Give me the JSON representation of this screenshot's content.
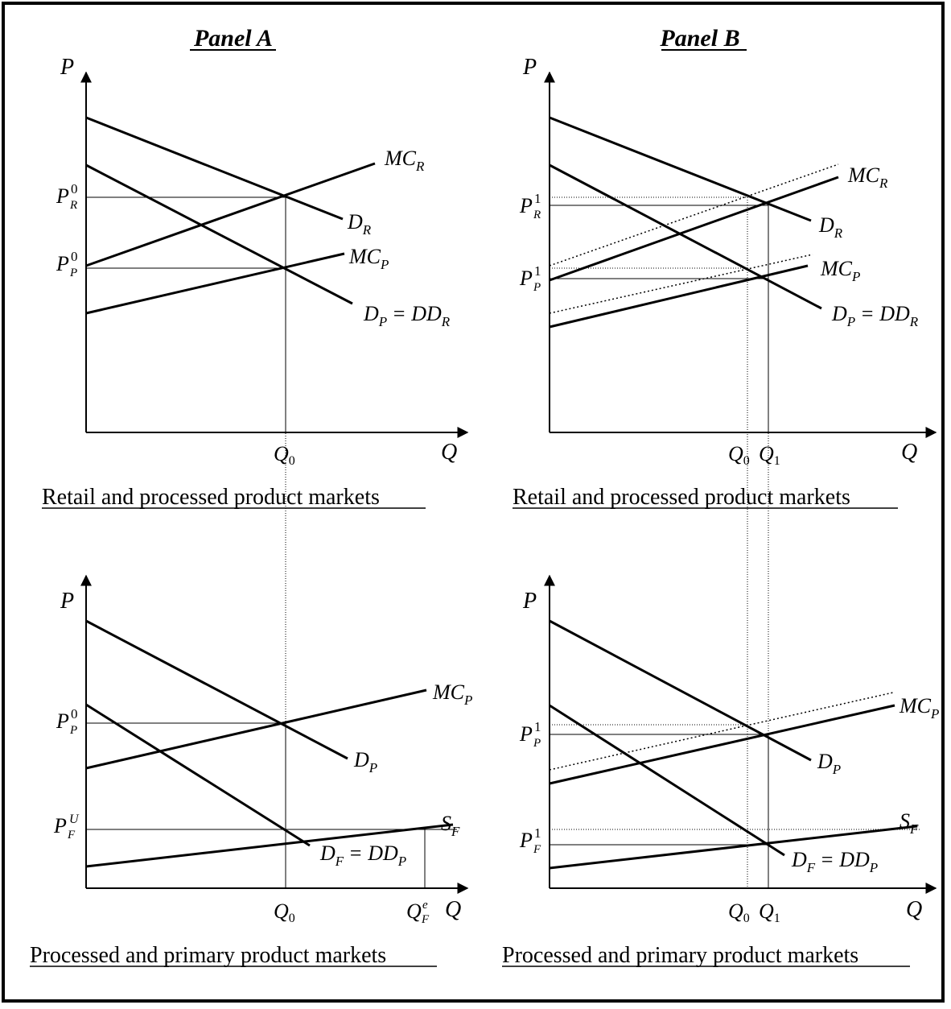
{
  "panel_titles": {
    "a": "Panel A",
    "b": "Panel B"
  },
  "captions": {
    "a_top": "Retail and processed product markets",
    "b_top": "Retail and processed product markets",
    "a_bottom": "Processed and primary product markets",
    "b_bottom": "Processed and primary product markets"
  },
  "axis_labels": {
    "price": "P",
    "quantity": "Q"
  },
  "curve_labels": {
    "mc_r": {
      "main": "MC",
      "sub": "R"
    },
    "d_r": {
      "main": "D",
      "sub": "R"
    },
    "mc_p": {
      "main": "MC",
      "sub": "P"
    },
    "d_p": {
      "main": "D",
      "sub": "P"
    },
    "d_p_eq_dd_r": {
      "main": "D",
      "sub": "P",
      "rhs": "= DD",
      "rsub": "R"
    },
    "d_f_eq_dd_p": {
      "main": "D",
      "sub": "F",
      "rhs": "= DD",
      "rsub": "P"
    },
    "s_f": {
      "main": "S",
      "sub": "F"
    }
  },
  "tick_labels": {
    "p_r0": {
      "main": "P",
      "sup": "0",
      "sub": "R"
    },
    "p_p0": {
      "main": "P",
      "sup": "0",
      "sub": "P"
    },
    "p_r1": {
      "main": "P",
      "sup": "1",
      "sub": "R"
    },
    "p_p1": {
      "main": "P",
      "sup": "1",
      "sub": "P"
    },
    "p_fu": {
      "main": "P",
      "sup": "U",
      "sub": "F"
    },
    "p_f1": {
      "main": "P",
      "sup": "1",
      "sub": "F"
    },
    "q0": {
      "main": "Q",
      "sub": "0"
    },
    "q1": {
      "main": "Q",
      "sub": "1"
    },
    "q_fe": {
      "main": "Q",
      "sup": "e",
      "sub": "F"
    }
  },
  "colors": {
    "ink": "#000000",
    "background": "#ffffff"
  }
}
